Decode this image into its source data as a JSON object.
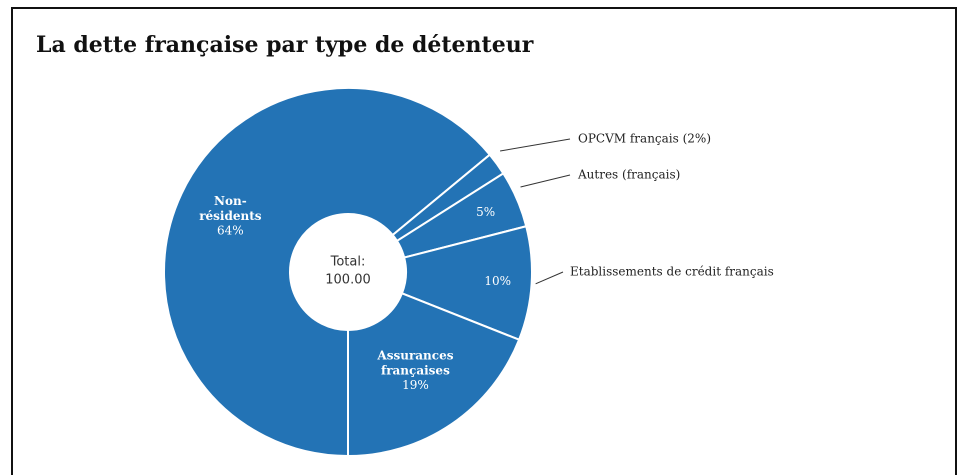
{
  "chart_data": {
    "type": "donut",
    "title": "La dette française par type de détenteur",
    "categories": [
      "Non-résidents",
      "OPCVM français (2%)",
      "Autres (français)",
      "Etablissements de crédit français",
      "Assurances françaises"
    ],
    "values": [
      64,
      2,
      5,
      10,
      19
    ],
    "value_labels": [
      "64%",
      null,
      "5%",
      "10%",
      "19%"
    ],
    "name_positions": [
      "inside",
      "outside",
      "outside",
      "outside",
      "inside"
    ],
    "color": "#2373b5",
    "center_label": "Total:",
    "total": {
      "value": 100,
      "label": "100.00"
    }
  }
}
